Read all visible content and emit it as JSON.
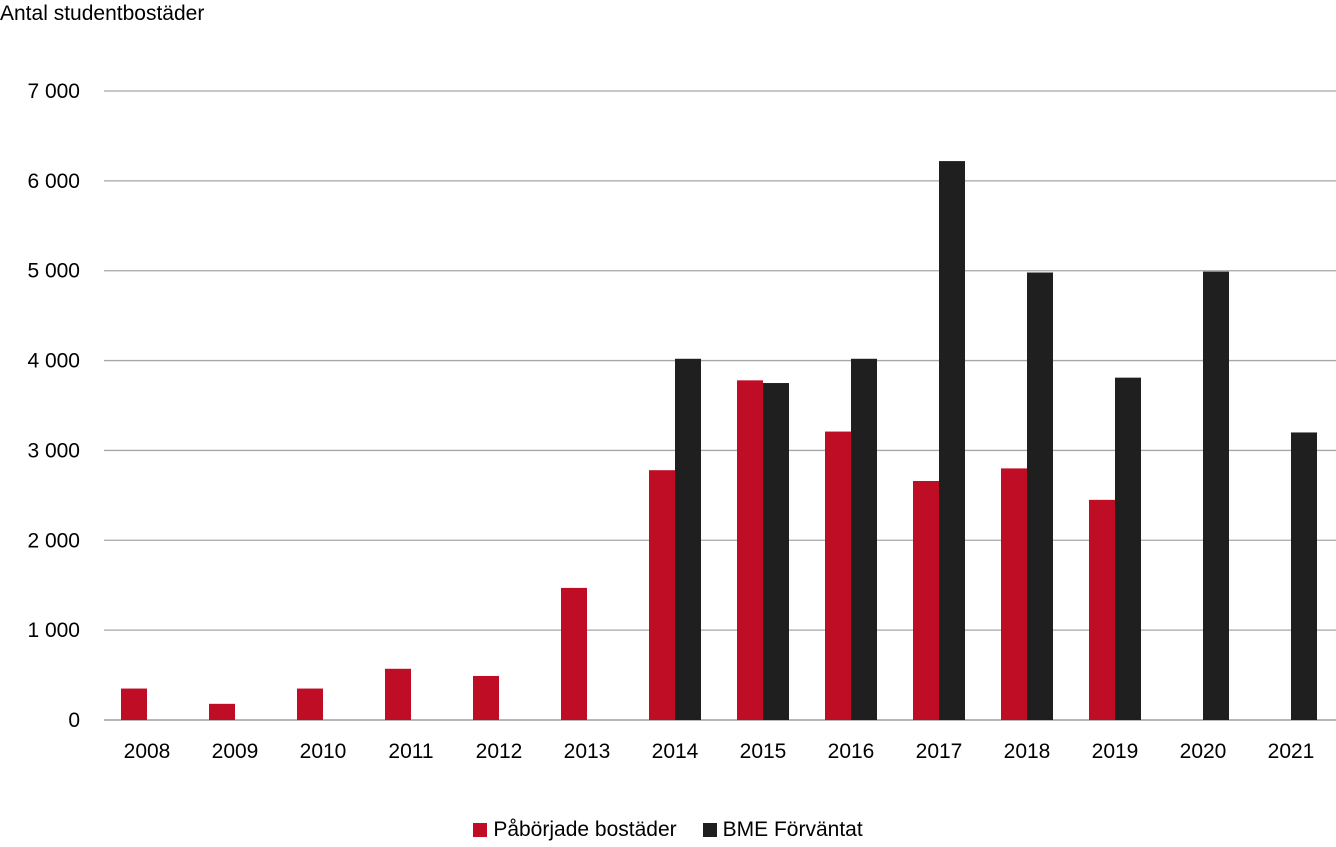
{
  "chart_data": {
    "type": "bar",
    "title": "",
    "xlabel": "",
    "ylabel": "Antal studentbostäder",
    "ylim": [
      0,
      7000
    ],
    "yticks": [
      0,
      1000,
      2000,
      3000,
      4000,
      5000,
      6000,
      7000
    ],
    "ytick_labels": [
      "0",
      "1 000",
      "2 000",
      "3 000",
      "4 000",
      "5 000",
      "6 000",
      "7 000"
    ],
    "grid": true,
    "legend_position": "bottom",
    "categories": [
      "2008",
      "2009",
      "2010",
      "2011",
      "2012",
      "2013",
      "2014",
      "2015",
      "2016",
      "2017",
      "2018",
      "2019",
      "2020",
      "2021"
    ],
    "series": [
      {
        "name": "Påbörjade bostäder",
        "color": "#c00d26",
        "values": [
          350,
          180,
          350,
          570,
          490,
          1470,
          2780,
          3780,
          3210,
          2660,
          2800,
          2450,
          null,
          null
        ]
      },
      {
        "name": "BME Förväntat",
        "color": "#1f1f1f",
        "values": [
          null,
          null,
          null,
          null,
          null,
          null,
          4020,
          3750,
          4020,
          6220,
          4980,
          3810,
          4990,
          3200
        ]
      }
    ]
  }
}
